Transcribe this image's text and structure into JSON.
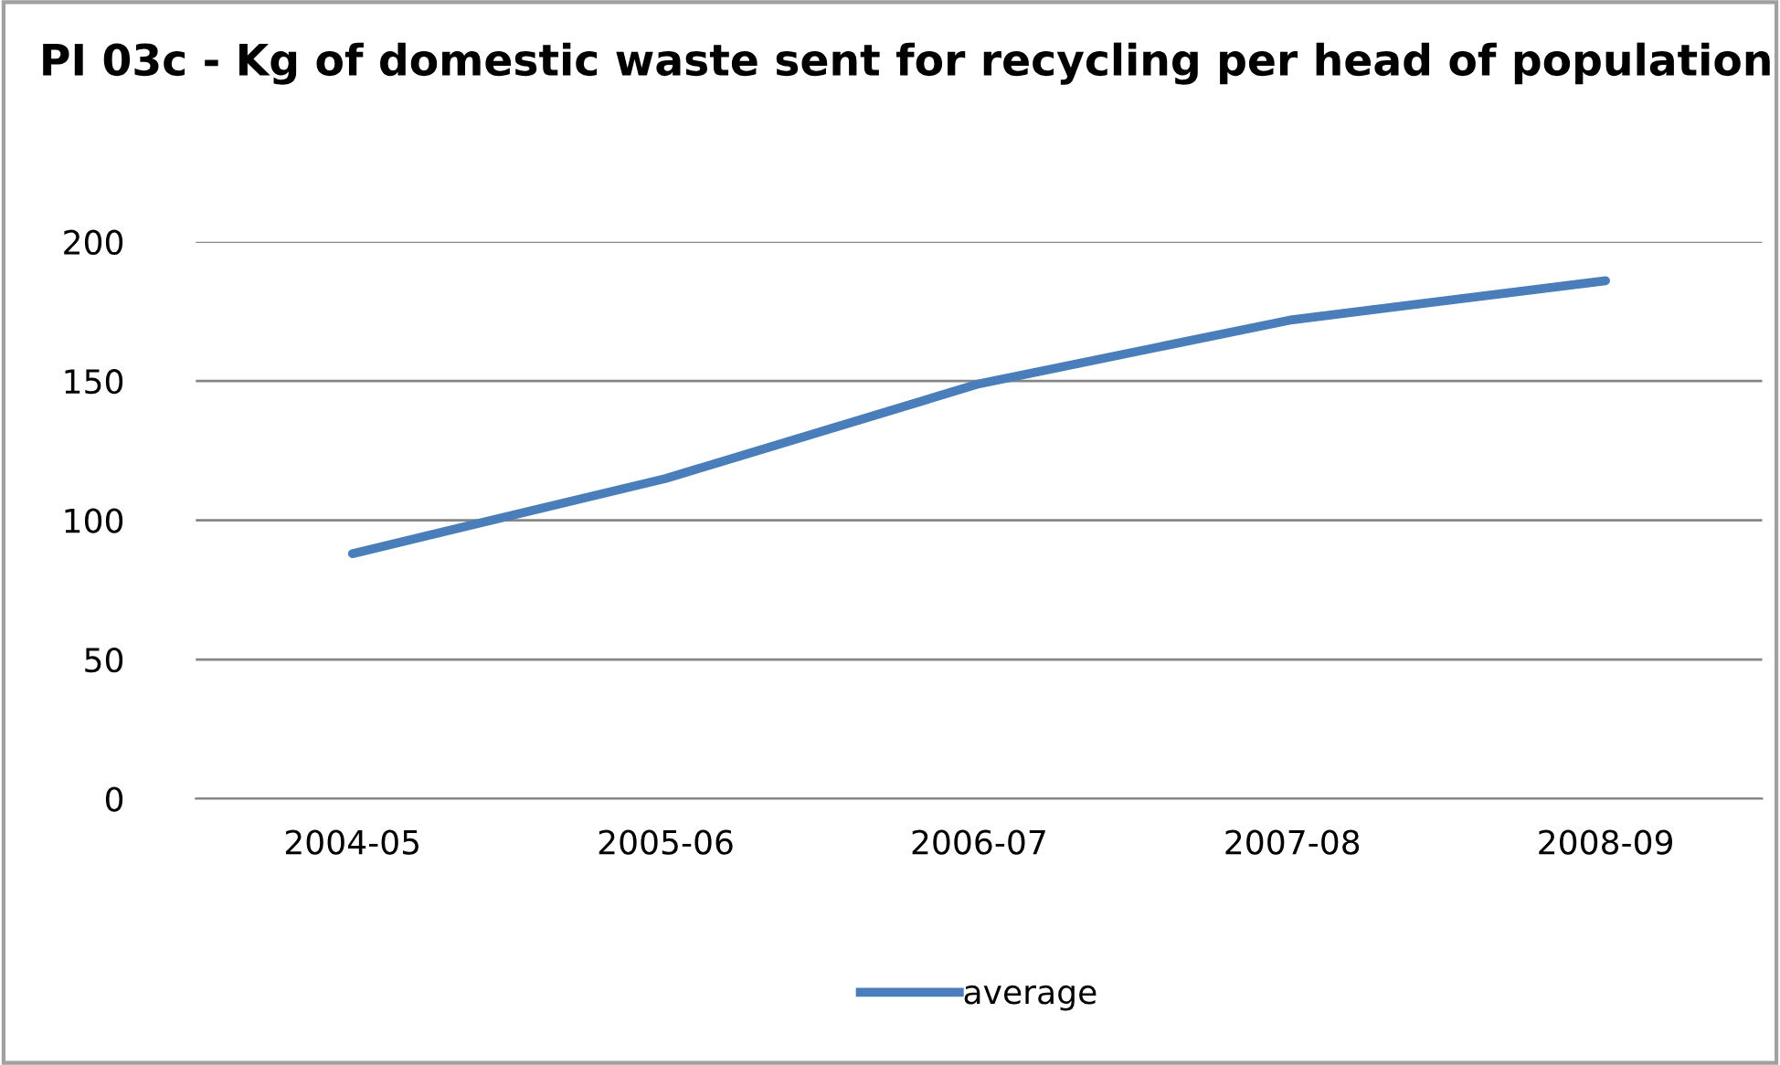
{
  "chart_data": {
    "type": "line",
    "title": "PI 03c - Kg of domestic waste sent for recycling per head of population",
    "categories": [
      "2004-05",
      "2005-06",
      "2006-07",
      "2007-08",
      "2008-09"
    ],
    "series": [
      {
        "name": "average",
        "color": "#4a7ebb",
        "values": [
          88,
          115,
          149,
          172,
          186
        ]
      }
    ],
    "ylim": [
      0,
      200
    ],
    "yticks": [
      0,
      50,
      100,
      150,
      200
    ],
    "grid": "y",
    "legend": "bottom",
    "marker": "none",
    "line_style": "solid"
  }
}
